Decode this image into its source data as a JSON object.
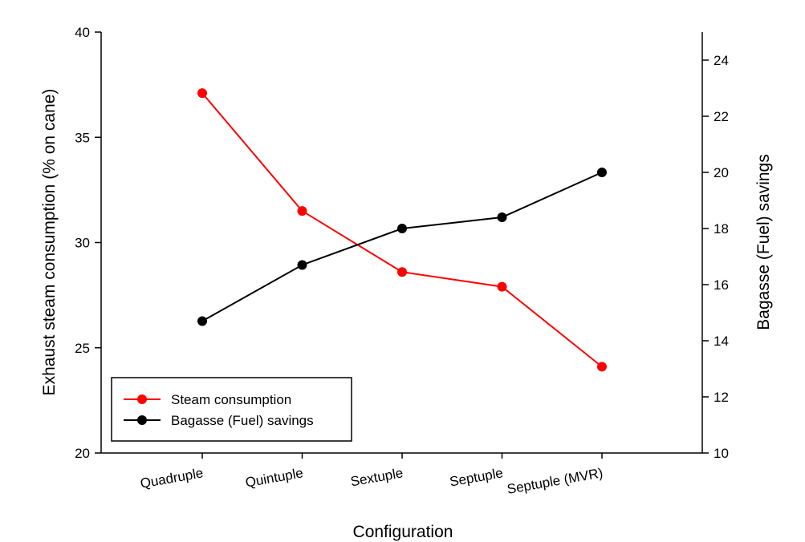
{
  "chart_data": {
    "type": "line",
    "title": "",
    "categories": [
      "Quadruple",
      "Quintuple",
      "Sextuple",
      "Septuple",
      "Septuple (MVR)"
    ],
    "xlabel": "Configuration",
    "ylabel_left": "Exhaust steam consumption (% on cane)",
    "ylabel_right": "Bagasse (Fuel) savings",
    "ylim_left": [
      20,
      40
    ],
    "ylim_right": [
      10,
      25
    ],
    "yticks_left": [
      20,
      25,
      30,
      35,
      40
    ],
    "yticks_right": [
      10,
      12,
      14,
      16,
      18,
      20,
      22,
      24
    ],
    "legend_position": "lower-left",
    "series": [
      {
        "name": "Steam consumption",
        "axis": "left",
        "color": "#ff0000",
        "values": [
          37.1,
          31.5,
          28.6,
          27.9,
          24.1
        ]
      },
      {
        "name": "Bagasse (Fuel) savings",
        "axis": "right",
        "color": "#000000",
        "values": [
          14.7,
          16.7,
          18.0,
          18.4,
          20.0
        ]
      }
    ]
  }
}
